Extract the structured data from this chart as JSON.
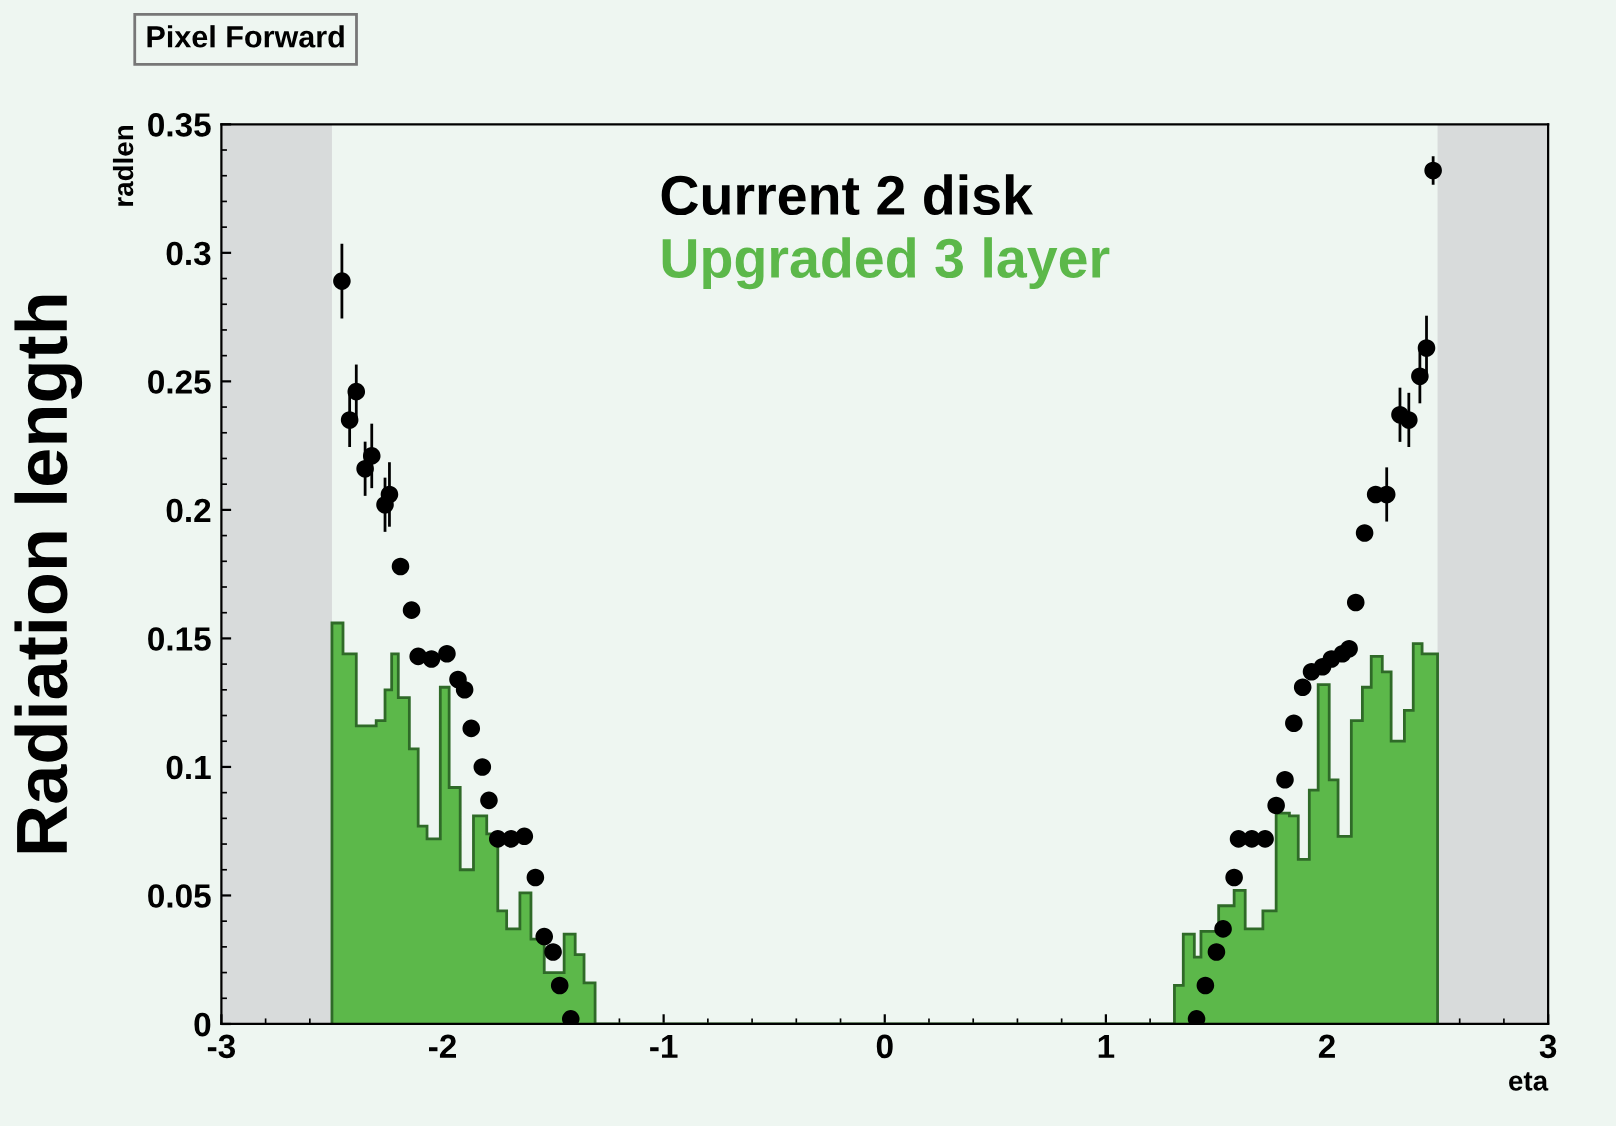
{
  "chart_data": {
    "type": "histogram",
    "title": "Pixel Forward",
    "xlabel": "eta",
    "ylabel": "Radiation length",
    "annotations": [
      "radlen"
    ],
    "xlim": [
      -3,
      3
    ],
    "xticks": [
      -3,
      -2,
      -1,
      0,
      1,
      2,
      3
    ],
    "ylim": [
      0,
      0.35
    ],
    "yticks": [
      0,
      0.05,
      0.1,
      0.15,
      0.2,
      0.25,
      0.3,
      0.35
    ],
    "legend": "top",
    "grid": false,
    "bands": [
      {
        "axis": "x",
        "from": -3,
        "to": -2.5,
        "color": "#d8dbdb"
      },
      {
        "axis": "x",
        "from": 2.5,
        "to": 3,
        "color": "#d8dbdb"
      }
    ],
    "series": [
      {
        "name": "Upgraded 3 layer",
        "color": "#5cb84a",
        "bins": [
          -2.5,
          -2.45,
          -2.39,
          -2.3,
          -2.26,
          -2.23,
          -2.2,
          -2.15,
          -2.11,
          -2.07,
          -2.01,
          -1.97,
          -1.92,
          -1.86,
          -1.8,
          -1.75,
          -1.71,
          -1.65,
          -1.6,
          -1.54,
          -1.45,
          -1.4,
          -1.36,
          -1.31,
          1.31,
          1.35,
          1.4,
          1.43,
          1.51,
          1.58,
          1.63,
          1.71,
          1.77,
          1.83,
          1.87,
          1.92,
          1.96,
          2.01,
          2.05,
          2.11,
          2.16,
          2.2,
          2.25,
          2.29,
          2.35,
          2.39,
          2.43,
          2.5
        ],
        "values": [
          0.156,
          0.144,
          0.116,
          0.118,
          0.13,
          0.144,
          0.127,
          0.107,
          0.077,
          0.072,
          0.131,
          0.092,
          0.06,
          0.081,
          0.074,
          0.044,
          0.037,
          0.051,
          0.033,
          0.02,
          0.035,
          0.027,
          0.016,
          0,
          0.015,
          0.035,
          0.026,
          0.036,
          0.046,
          0.052,
          0.037,
          0.044,
          0.082,
          0.081,
          0.064,
          0.091,
          0.132,
          0.095,
          0.073,
          0.118,
          0.131,
          0.143,
          0.137,
          0.11,
          0.122,
          0.148,
          0.144
        ]
      },
      {
        "type": "scatter",
        "name": "Current 2 disk",
        "color": "#000000",
        "marker": "circle",
        "x": [
          -2.455,
          -2.42,
          -2.39,
          -2.35,
          -2.32,
          -2.26,
          -2.24,
          -2.19,
          -2.14,
          -2.11,
          -2.05,
          -1.98,
          -1.93,
          -1.9,
          -1.87,
          -1.82,
          -1.79,
          -1.75,
          -1.69,
          -1.63,
          -1.58,
          -1.54,
          -1.5,
          -1.47,
          -1.42,
          1.41,
          1.45,
          1.5,
          1.53,
          1.58,
          1.6,
          1.66,
          1.72,
          1.77,
          1.81,
          1.85,
          1.89,
          1.93,
          1.98,
          2.02,
          2.07,
          2.1,
          2.13,
          2.17,
          2.22,
          2.27,
          2.33,
          2.37,
          2.42,
          2.45,
          2.48
        ],
        "values": [
          0.289,
          0.235,
          0.246,
          0.216,
          0.221,
          0.202,
          0.206,
          0.178,
          0.161,
          0.143,
          0.142,
          0.144,
          0.134,
          0.13,
          0.115,
          0.1,
          0.087,
          0.072,
          0.072,
          0.073,
          0.057,
          0.034,
          0.028,
          0.015,
          0.002,
          0.002,
          0.015,
          0.028,
          0.037,
          0.057,
          0.072,
          0.072,
          0.072,
          0.085,
          0.095,
          0.117,
          0.131,
          0.137,
          0.139,
          0.142,
          0.144,
          0.146,
          0.164,
          0.191,
          0.206,
          0.206,
          0.237,
          0.235,
          0.252,
          0.263,
          0.332
        ],
        "errors": [
          0.014,
          0.01,
          0.01,
          0.01,
          0.012,
          0.01,
          0.012,
          null,
          null,
          null,
          null,
          null,
          null,
          null,
          null,
          null,
          null,
          null,
          null,
          null,
          null,
          null,
          null,
          null,
          null,
          null,
          null,
          null,
          null,
          null,
          null,
          null,
          null,
          null,
          null,
          null,
          null,
          null,
          null,
          null,
          null,
          null,
          null,
          null,
          null,
          0.01,
          0.01,
          0.01,
          0.01,
          0.012,
          0.005
        ]
      }
    ]
  }
}
